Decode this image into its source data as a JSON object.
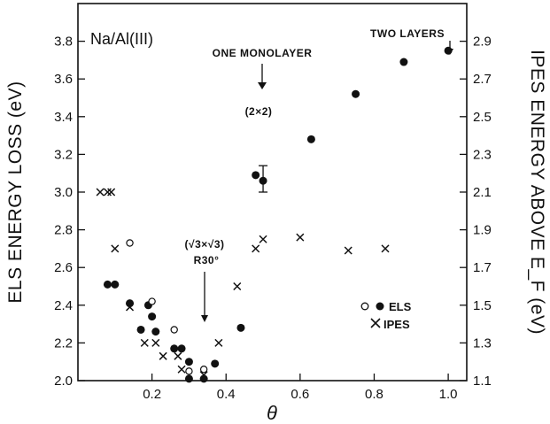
{
  "chart_data": {
    "type": "scatter",
    "title": "Na/Al(III)",
    "xlabel": "θ",
    "ylabel": "ELS ENERGY LOSS (eV)",
    "ylabel_right": "IPES ENERGY ABOVE E_F (eV)",
    "xlim": [
      0.0,
      1.05
    ],
    "ylim": [
      2.0,
      4.0
    ],
    "ylim_right": [
      1.1,
      3.1
    ],
    "x_ticks": [
      0.2,
      0.4,
      0.6,
      0.8,
      1.0
    ],
    "x_tick_labels": [
      "0.2",
      "0.4",
      "0.6",
      "0.8",
      "1.0"
    ],
    "y_ticks": [
      2.0,
      2.2,
      2.4,
      2.6,
      2.8,
      3.0,
      3.2,
      3.4,
      3.6,
      3.8
    ],
    "y_tick_labels": [
      "2.0",
      "2.2",
      "2.4",
      "2.6",
      "2.8",
      "3.0",
      "3.2",
      "3.4",
      "3.6",
      "3.8"
    ],
    "y_right_ticks": [
      1.1,
      1.3,
      1.5,
      1.7,
      1.9,
      2.1,
      2.3,
      2.5,
      2.7,
      2.9
    ],
    "y_right_tick_labels": [
      "1.1",
      "1.3",
      "1.5",
      "1.7",
      "1.9",
      "2.1",
      "2.3",
      "2.5",
      "2.7",
      "2.9"
    ],
    "grid": false,
    "legend_position": "right",
    "series": [
      {
        "name": "ELS",
        "marker": "filled-circle",
        "points": [
          [
            0.08,
            2.51
          ],
          [
            0.1,
            2.51
          ],
          [
            0.14,
            2.41
          ],
          [
            0.17,
            2.27
          ],
          [
            0.19,
            2.4
          ],
          [
            0.2,
            2.34
          ],
          [
            0.21,
            2.26
          ],
          [
            0.26,
            2.17
          ],
          [
            0.28,
            2.17
          ],
          [
            0.3,
            2.1
          ],
          [
            0.3,
            2.01
          ],
          [
            0.34,
            2.01
          ],
          [
            0.37,
            2.09
          ],
          [
            0.44,
            2.28
          ],
          [
            0.48,
            3.09
          ],
          [
            0.5,
            3.06
          ],
          [
            0.63,
            3.28
          ],
          [
            0.75,
            3.52
          ],
          [
            0.88,
            3.69
          ],
          [
            1.0,
            3.75
          ]
        ]
      },
      {
        "name": "ELS",
        "marker": "open-circle",
        "points": [
          [
            0.14,
            2.73
          ],
          [
            0.2,
            2.42
          ],
          [
            0.26,
            2.27
          ],
          [
            0.3,
            2.05
          ],
          [
            0.34,
            2.06
          ]
        ]
      },
      {
        "name": "IPES",
        "marker": "cross",
        "axis": "right",
        "points": [
          [
            0.06,
            2.1
          ],
          [
            0.08,
            2.1
          ],
          [
            0.09,
            2.1
          ],
          [
            0.1,
            1.8
          ],
          [
            0.14,
            1.49
          ],
          [
            0.18,
            1.3
          ],
          [
            0.21,
            1.3
          ],
          [
            0.23,
            1.23
          ],
          [
            0.27,
            1.23
          ],
          [
            0.28,
            1.16
          ],
          [
            0.34,
            1.13
          ],
          [
            0.38,
            1.3
          ],
          [
            0.43,
            1.6
          ],
          [
            0.48,
            1.8
          ],
          [
            0.5,
            1.85
          ],
          [
            0.6,
            1.86
          ],
          [
            0.73,
            1.79
          ],
          [
            0.83,
            1.8
          ]
        ]
      }
    ],
    "error_bars": [
      {
        "x": 0.5,
        "low": 3.0,
        "high": 3.14
      }
    ],
    "annotations": {
      "one_monolayer": "ONE MONOLAYER",
      "two_layers": "TWO LAYERS",
      "two_by_two": "(2×2)",
      "sqrt3_phase": "(√3×√3)",
      "r30": "R30°"
    },
    "legend": {
      "els_label": "ELS",
      "ipes_label": "IPES"
    }
  }
}
